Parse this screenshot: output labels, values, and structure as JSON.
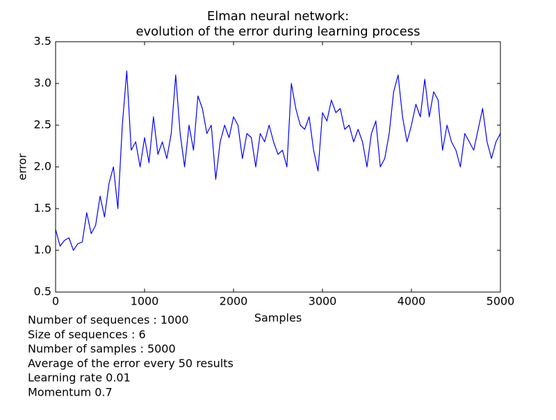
{
  "chart_data": {
    "type": "line",
    "title_lines": [
      "Elman neural network:",
      "evolution of the error during learning process"
    ],
    "x_label": "Samples",
    "y_label": "error",
    "annotations": [
      "Number of sequences : 1000",
      "Size of sequences : 6",
      "Number of samples : 5000",
      "Average of the error every 50 results",
      "Learning rate 0.01",
      "Momentum 0.7"
    ],
    "xlim": [
      0,
      5000
    ],
    "ylim": [
      0.5,
      3.5
    ],
    "xticks": [
      0,
      1000,
      2000,
      3000,
      4000,
      5000
    ],
    "yticks": [
      0.5,
      {
        "value": 1,
        "label": "1.0"
      },
      1.5,
      {
        "value": 2,
        "label": "2.0"
      },
      2.5,
      {
        "value": 3,
        "label": "3.0"
      },
      3.5
    ],
    "grid": false,
    "series": [
      {
        "name": "error",
        "color": "#0000ff",
        "x": [
          0,
          50,
          100,
          150,
          200,
          250,
          300,
          350,
          400,
          450,
          500,
          550,
          600,
          650,
          700,
          750,
          800,
          850,
          900,
          950,
          1000,
          1050,
          1100,
          1150,
          1200,
          1250,
          1300,
          1350,
          1400,
          1450,
          1500,
          1550,
          1600,
          1650,
          1700,
          1750,
          1800,
          1850,
          1900,
          1950,
          2000,
          2050,
          2100,
          2150,
          2200,
          2250,
          2300,
          2350,
          2400,
          2450,
          2500,
          2550,
          2600,
          2650,
          2700,
          2750,
          2800,
          2850,
          2900,
          2950,
          3000,
          3050,
          3100,
          3150,
          3200,
          3250,
          3300,
          3350,
          3400,
          3450,
          3500,
          3550,
          3600,
          3650,
          3700,
          3750,
          3800,
          3850,
          3900,
          3950,
          4000,
          4050,
          4100,
          4150,
          4200,
          4250,
          4300,
          4350,
          4400,
          4450,
          4500,
          4550,
          4600,
          4650,
          4700,
          4750,
          4800,
          4850,
          4900,
          4950,
          5000
        ],
        "values": [
          1.25,
          1.05,
          1.12,
          1.15,
          1.0,
          1.08,
          1.1,
          1.45,
          1.2,
          1.3,
          1.65,
          1.4,
          1.8,
          2.0,
          1.5,
          2.5,
          3.15,
          2.2,
          2.3,
          2.0,
          2.35,
          2.05,
          2.6,
          2.15,
          2.3,
          2.1,
          2.4,
          3.1,
          2.4,
          2.0,
          2.5,
          2.2,
          2.85,
          2.7,
          2.4,
          2.5,
          1.85,
          2.3,
          2.5,
          2.35,
          2.6,
          2.5,
          2.1,
          2.4,
          2.35,
          2.0,
          2.4,
          2.3,
          2.5,
          2.3,
          2.15,
          2.2,
          2.0,
          3.0,
          2.7,
          2.5,
          2.45,
          2.6,
          2.2,
          1.95,
          2.65,
          2.55,
          2.8,
          2.65,
          2.7,
          2.45,
          2.5,
          2.3,
          2.45,
          2.3,
          2.0,
          2.4,
          2.55,
          2.0,
          2.1,
          2.4,
          2.9,
          3.1,
          2.6,
          2.3,
          2.5,
          2.75,
          2.6,
          3.05,
          2.6,
          2.9,
          2.8,
          2.2,
          2.5,
          2.3,
          2.2,
          2.0,
          2.4,
          2.3,
          2.2,
          2.45,
          2.7,
          2.3,
          2.1,
          2.3,
          2.4
        ]
      }
    ]
  }
}
